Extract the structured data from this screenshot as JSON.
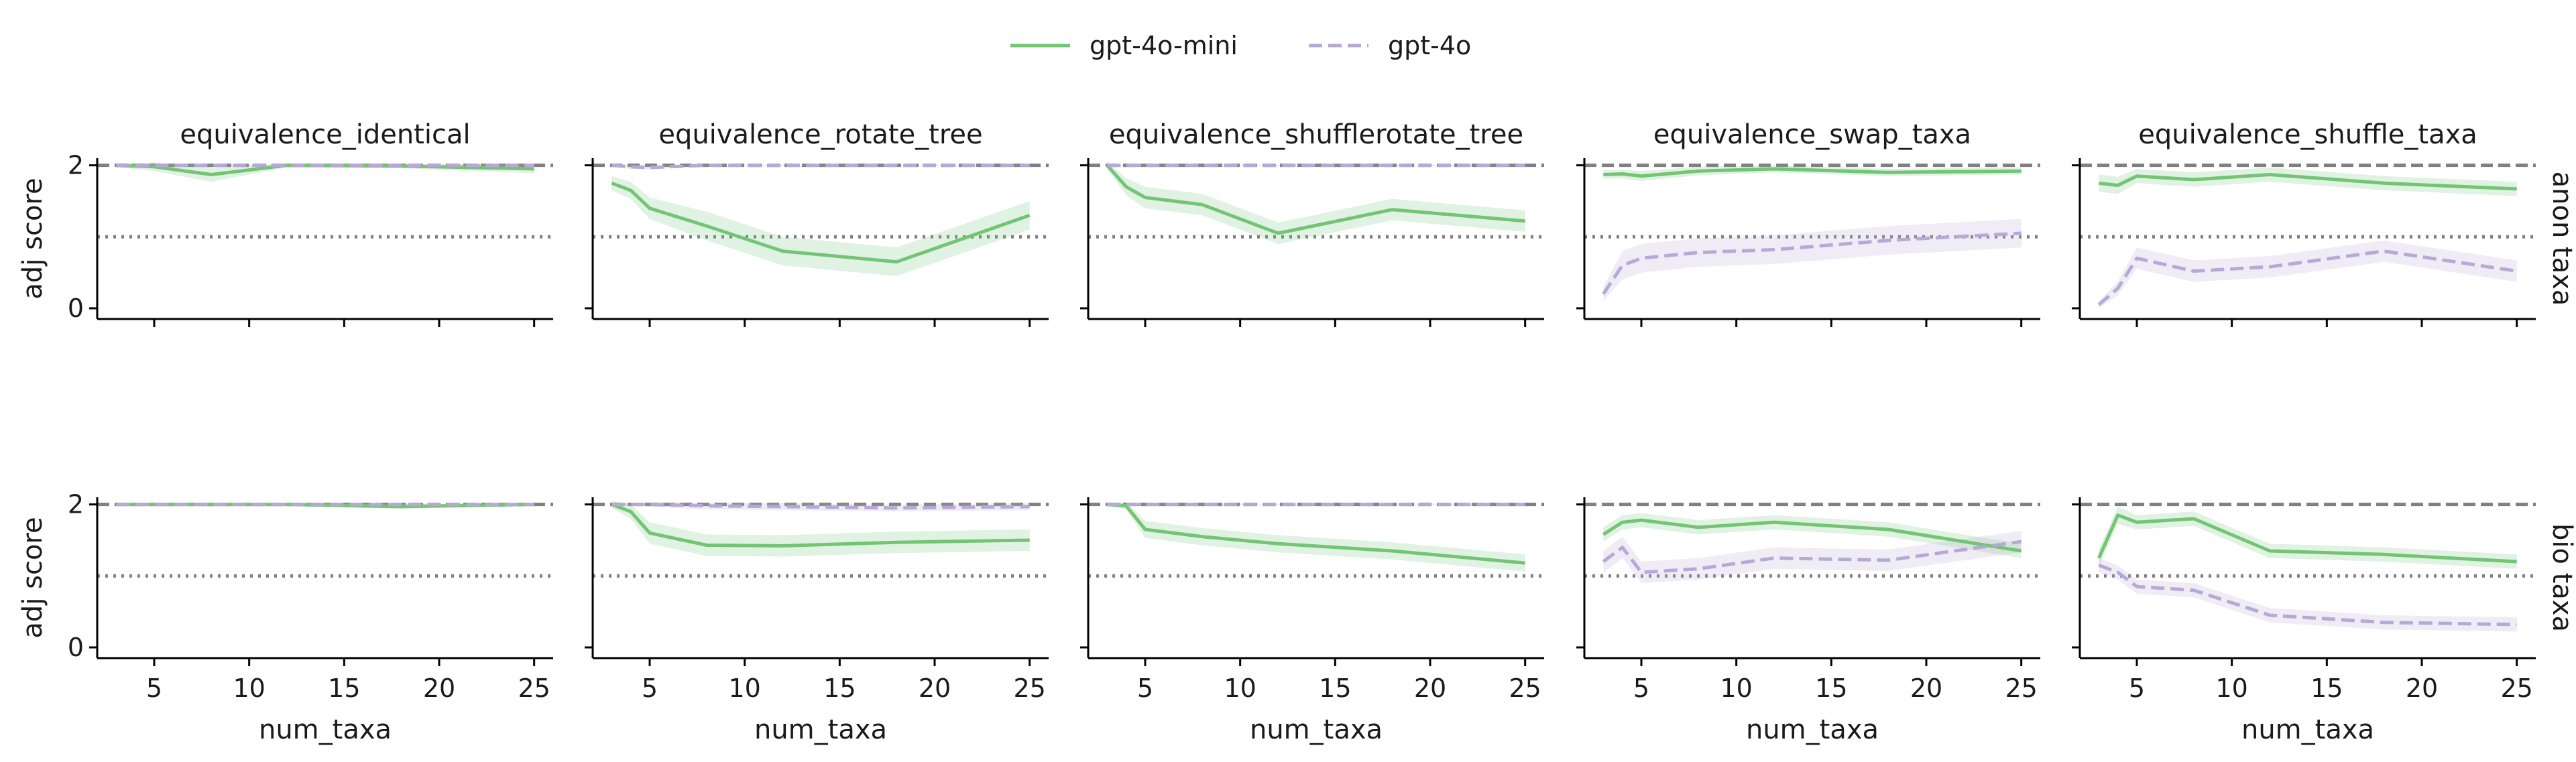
{
  "legend": {
    "items": [
      {
        "label": "gpt-4o-mini",
        "color": "#74c476",
        "dash": "solid"
      },
      {
        "label": "gpt-4o",
        "color": "#b7a8d6",
        "dash": "dashed"
      }
    ],
    "placement": "top-center"
  },
  "colors": {
    "green": "#74c476",
    "purple": "#b7a8d6",
    "reference": "#808080",
    "axis": "#000000"
  },
  "chart_data": {
    "type": "line",
    "layout": "facet grid, 2 rows x 5 columns",
    "xlabel": "num_taxa",
    "ylabel": "adj score",
    "xlim": [
      2,
      26
    ],
    "xticks": [
      5,
      10,
      15,
      20,
      25
    ],
    "ylim": [
      -0.15,
      2.1
    ],
    "yticks": [
      0,
      2
    ],
    "reference_lines": [
      {
        "y": 2,
        "style": "dashed"
      },
      {
        "y": 1,
        "style": "dotted"
      }
    ],
    "columns": [
      "equivalence_identical",
      "equivalence_rotate_tree",
      "equivalence_shufflerotate_tree",
      "equivalence_swap_taxa",
      "equivalence_shuffle_taxa"
    ],
    "rows": [
      "anon taxa",
      "bio taxa"
    ],
    "x": [
      3,
      4,
      5,
      8,
      12,
      18,
      25
    ],
    "panels": [
      [
        {
          "gpt-4o-mini": {
            "values": [
              2.0,
              1.99,
              1.98,
              1.87,
              2.0,
              1.99,
              1.95
            ],
            "ci": [
              0.03,
              0.04,
              0.06,
              0.1,
              0.03,
              0.03,
              0.06
            ]
          },
          "gpt-4o": {
            "values": [
              2.0,
              2.0,
              2.0,
              2.0,
              2.0,
              2.0,
              2.0
            ],
            "ci": [
              0.01,
              0.01,
              0.01,
              0.01,
              0.01,
              0.01,
              0.01
            ]
          }
        },
        {
          "gpt-4o-mini": {
            "values": [
              1.75,
              1.65,
              1.4,
              1.15,
              0.8,
              0.65,
              1.3
            ],
            "ci": [
              0.1,
              0.12,
              0.15,
              0.2,
              0.2,
              0.2,
              0.2
            ]
          },
          "gpt-4o": {
            "values": [
              2.0,
              1.98,
              1.97,
              2.0,
              2.0,
              2.0,
              2.0
            ],
            "ci": [
              0.02,
              0.03,
              0.03,
              0.01,
              0.01,
              0.01,
              0.01
            ]
          }
        },
        {
          "gpt-4o-mini": {
            "values": [
              2.0,
              1.7,
              1.55,
              1.45,
              1.05,
              1.38,
              1.22
            ],
            "ci": [
              0.05,
              0.12,
              0.15,
              0.15,
              0.15,
              0.15,
              0.15
            ]
          },
          "gpt-4o": {
            "values": [
              2.0,
              2.0,
              2.0,
              2.0,
              2.0,
              2.0,
              2.0
            ],
            "ci": [
              0.01,
              0.01,
              0.01,
              0.01,
              0.01,
              0.01,
              0.01
            ]
          }
        },
        {
          "gpt-4o-mini": {
            "values": [
              1.87,
              1.88,
              1.85,
              1.92,
              1.95,
              1.9,
              1.92
            ],
            "ci": [
              0.06,
              0.06,
              0.07,
              0.06,
              0.05,
              0.05,
              0.05
            ]
          },
          "gpt-4o": {
            "values": [
              0.2,
              0.6,
              0.7,
              0.78,
              0.82,
              0.95,
              1.05
            ],
            "ci": [
              0.1,
              0.2,
              0.2,
              0.2,
              0.2,
              0.2,
              0.2
            ]
          }
        },
        {
          "gpt-4o-mini": {
            "values": [
              1.75,
              1.72,
              1.85,
              1.8,
              1.87,
              1.75,
              1.67
            ],
            "ci": [
              0.12,
              0.12,
              0.1,
              0.1,
              0.1,
              0.1,
              0.1
            ]
          },
          "gpt-4o": {
            "values": [
              0.05,
              0.28,
              0.7,
              0.52,
              0.58,
              0.8,
              0.52
            ],
            "ci": [
              0.05,
              0.1,
              0.15,
              0.15,
              0.15,
              0.15,
              0.15
            ]
          }
        }
      ],
      [
        {
          "gpt-4o-mini": {
            "values": [
              2.0,
              2.0,
              2.0,
              2.0,
              2.0,
              1.97,
              2.0
            ],
            "ci": [
              0.01,
              0.01,
              0.01,
              0.01,
              0.02,
              0.03,
              0.02
            ]
          },
          "gpt-4o": {
            "values": [
              2.0,
              2.0,
              2.0,
              2.0,
              2.0,
              2.0,
              2.0
            ],
            "ci": [
              0.01,
              0.01,
              0.01,
              0.01,
              0.01,
              0.01,
              0.01
            ]
          }
        },
        {
          "gpt-4o-mini": {
            "values": [
              2.0,
              1.9,
              1.6,
              1.43,
              1.42,
              1.47,
              1.5
            ],
            "ci": [
              0.05,
              0.1,
              0.15,
              0.15,
              0.15,
              0.15,
              0.15
            ]
          },
          "gpt-4o": {
            "values": [
              2.0,
              2.0,
              2.0,
              1.98,
              1.97,
              1.95,
              1.97
            ],
            "ci": [
              0.02,
              0.02,
              0.03,
              0.05,
              0.05,
              0.05,
              0.05
            ]
          }
        },
        {
          "gpt-4o-mini": {
            "values": [
              2.0,
              1.98,
              1.65,
              1.55,
              1.45,
              1.35,
              1.18
            ],
            "ci": [
              0.02,
              0.05,
              0.12,
              0.12,
              0.12,
              0.12,
              0.12
            ]
          },
          "gpt-4o": {
            "values": [
              2.0,
              2.0,
              2.0,
              2.0,
              2.0,
              2.0,
              2.0
            ],
            "ci": [
              0.01,
              0.01,
              0.01,
              0.01,
              0.01,
              0.01,
              0.01
            ]
          }
        },
        {
          "gpt-4o-mini": {
            "values": [
              1.58,
              1.75,
              1.78,
              1.68,
              1.75,
              1.65,
              1.35
            ],
            "ci": [
              0.1,
              0.1,
              0.1,
              0.1,
              0.1,
              0.1,
              0.1
            ]
          },
          "gpt-4o": {
            "values": [
              1.2,
              1.4,
              1.05,
              1.1,
              1.25,
              1.22,
              1.48
            ],
            "ci": [
              0.15,
              0.15,
              0.15,
              0.15,
              0.15,
              0.15,
              0.15
            ]
          }
        },
        {
          "gpt-4o-mini": {
            "values": [
              1.25,
              1.85,
              1.75,
              1.8,
              1.35,
              1.3,
              1.2
            ],
            "ci": [
              0.12,
              0.12,
              0.1,
              0.1,
              0.1,
              0.1,
              0.1
            ]
          },
          "gpt-4o": {
            "values": [
              1.15,
              1.05,
              0.85,
              0.8,
              0.45,
              0.35,
              0.32
            ],
            "ci": [
              0.1,
              0.1,
              0.1,
              0.1,
              0.1,
              0.1,
              0.1
            ]
          }
        }
      ]
    ]
  }
}
